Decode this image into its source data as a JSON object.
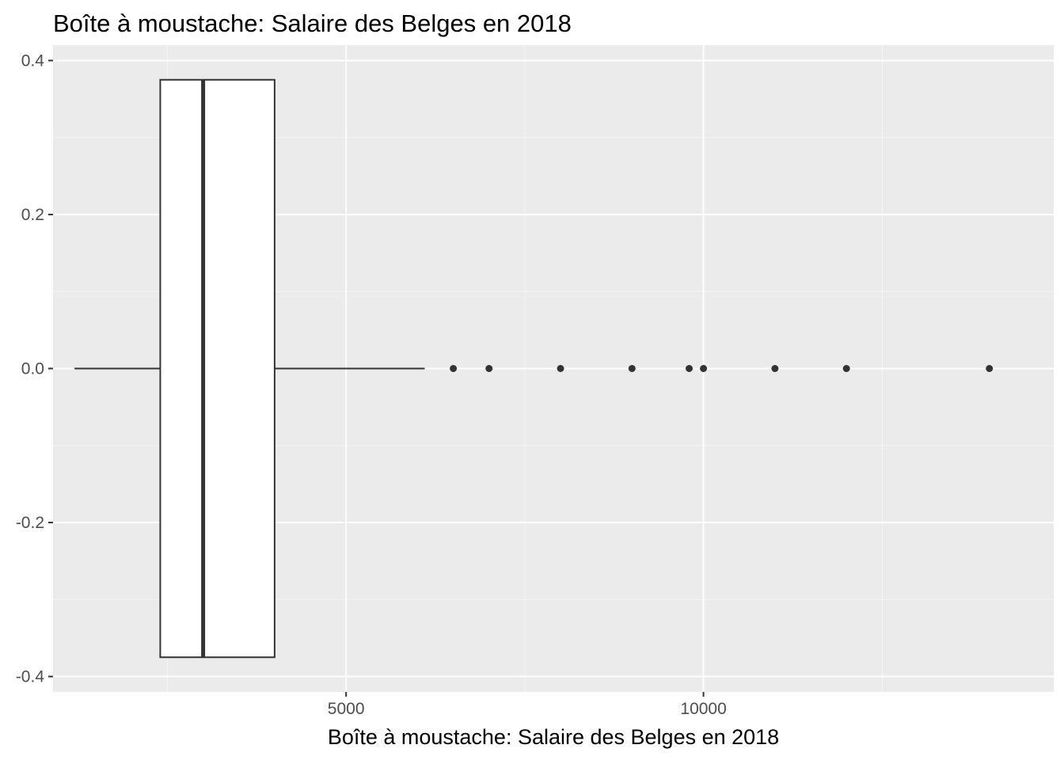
{
  "chart_data": {
    "type": "boxplot",
    "title": "Boîte à moustache: Salaire des Belges en 2018",
    "xlabel": "Boîte à moustache: Salaire des Belges en 2018",
    "ylabel": "",
    "xlim": [
      900,
      14900
    ],
    "ylim": [
      -0.42,
      0.42
    ],
    "x_ticks": [
      5000,
      10000
    ],
    "x_tick_labels": [
      "5000",
      "10000"
    ],
    "y_ticks": [
      0.4,
      0.2,
      0.0,
      -0.2,
      -0.4
    ],
    "y_tick_labels": [
      "0.4",
      "0.2",
      "0.0",
      "-0.2",
      "-0.4"
    ],
    "grid": true,
    "box": {
      "whisker_low": 1200,
      "q1": 2400,
      "median": 3000,
      "q3": 4000,
      "whisker_high": 6100,
      "y_center": 0.0,
      "half_height": 0.375
    },
    "outliers": [
      6500,
      7000,
      8000,
      9000,
      9800,
      10000,
      11000,
      12000,
      14000
    ],
    "colors": {
      "panel_background": "#ebebeb",
      "grid_major": "#ffffff",
      "grid_minor": "#f5f5f5",
      "box_fill": "#ffffff",
      "box_stroke": "#333333",
      "points": "#333333",
      "tick_labels": "#4d4d4d"
    }
  }
}
